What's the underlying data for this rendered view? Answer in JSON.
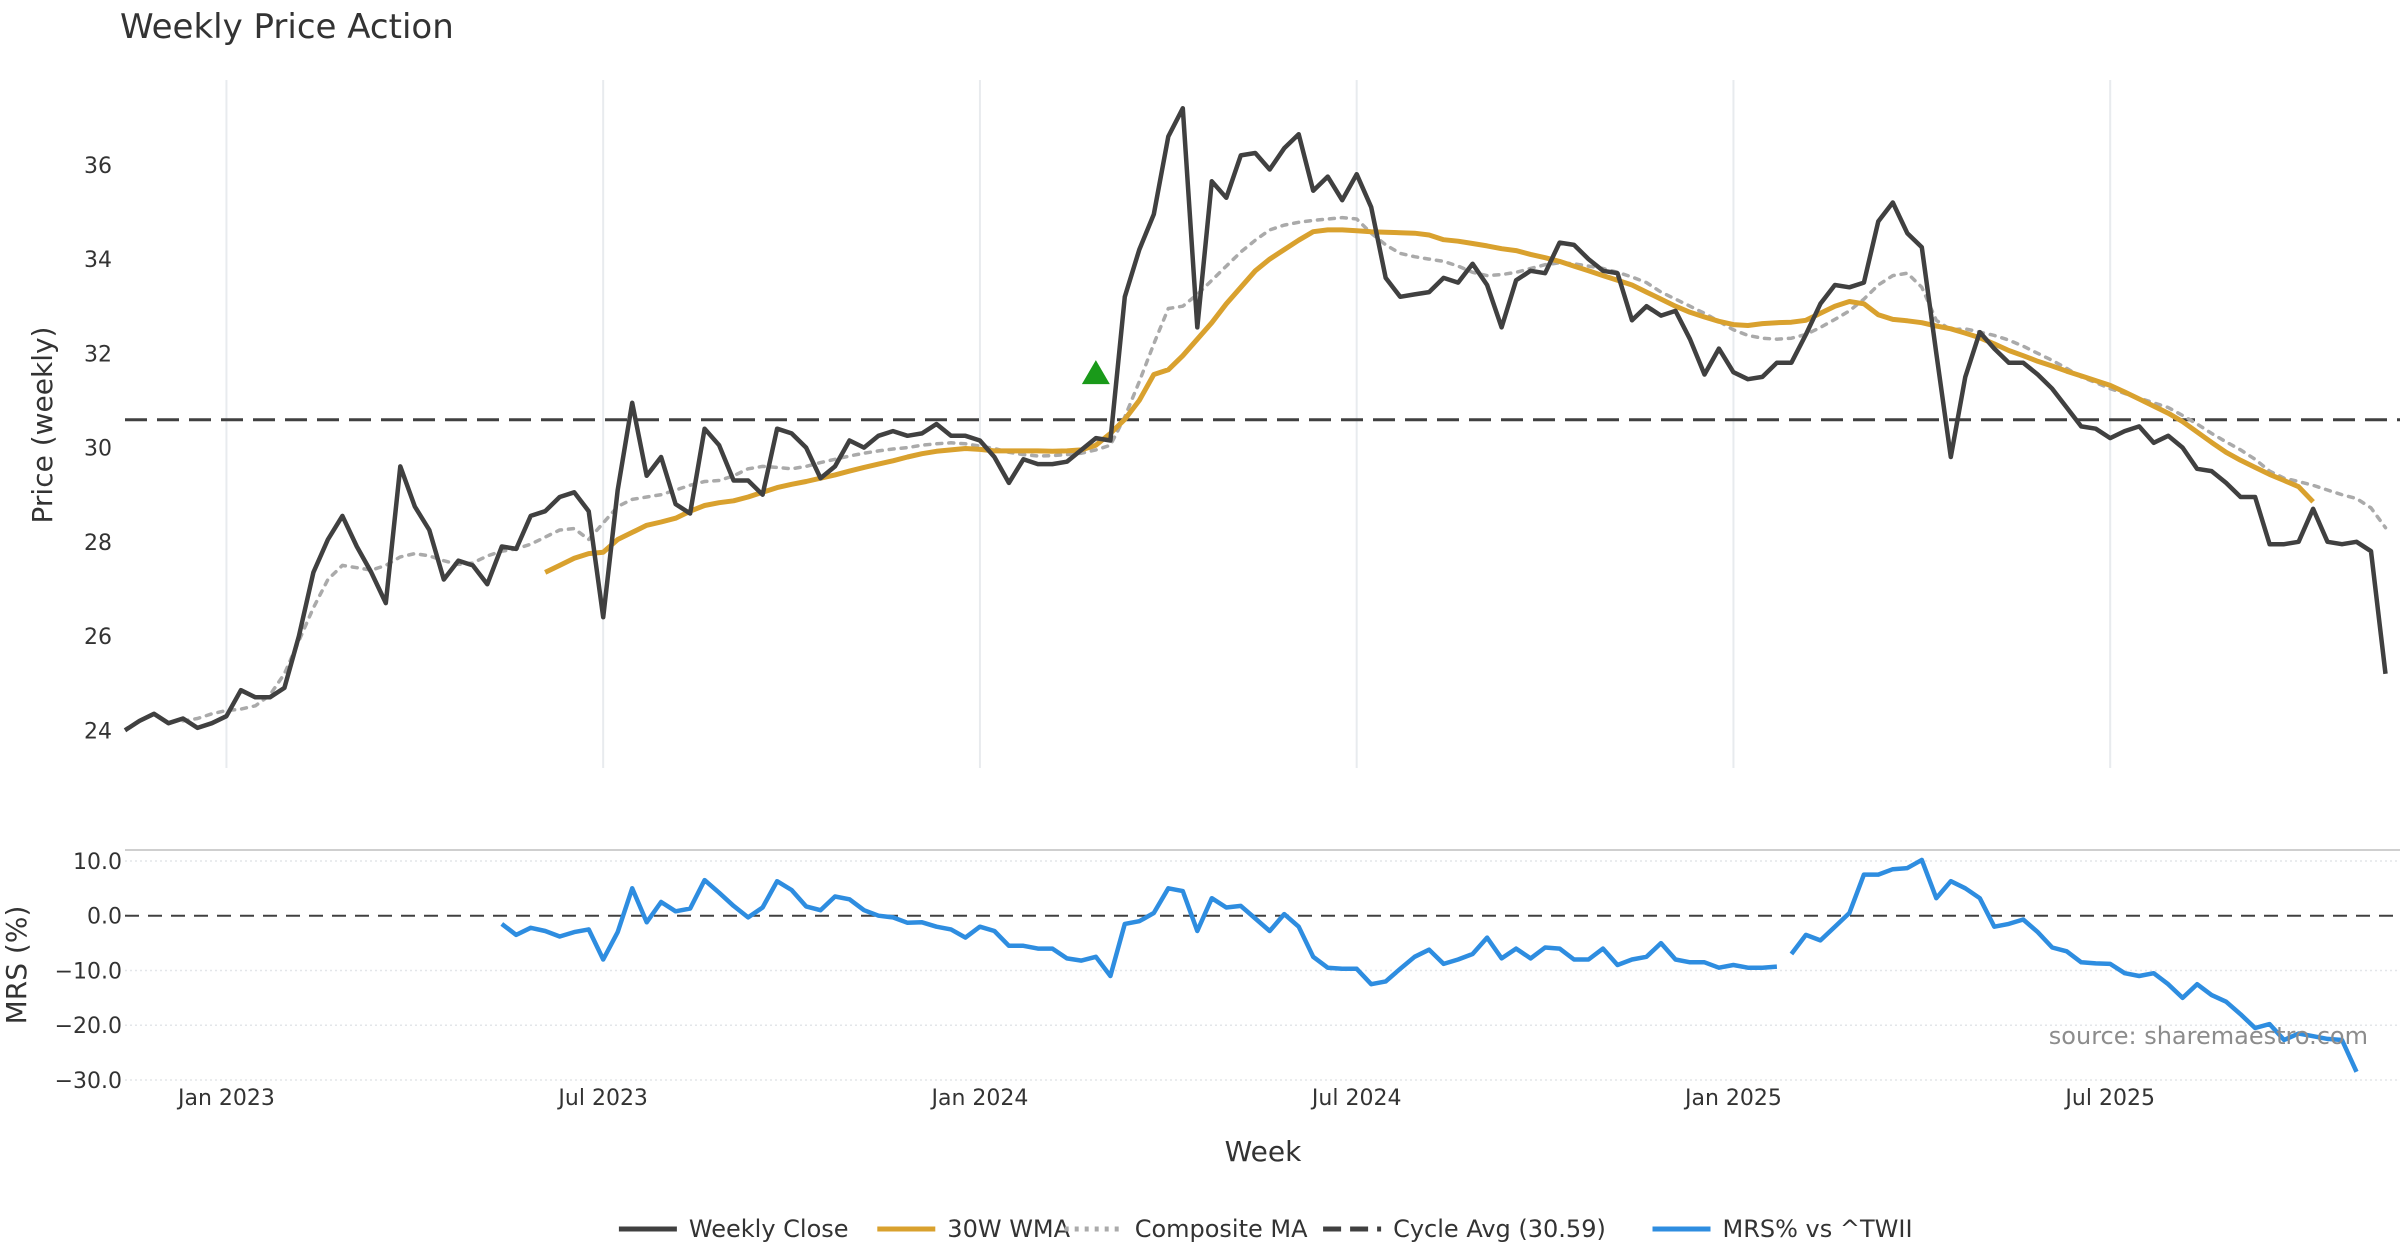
{
  "chart_data": {
    "type": "line",
    "title": "Weekly Price Action",
    "xlabel": "Week",
    "date_ticks": [
      {
        "label": "Jan 2023",
        "week": 3
      },
      {
        "label": "Jul 2023",
        "week": 29
      },
      {
        "label": "Jan 2024",
        "week": 55
      },
      {
        "label": "Jul 2024",
        "week": 81
      },
      {
        "label": "Jan 2025",
        "week": 107
      },
      {
        "label": "Jul 2025",
        "week": 133
      }
    ],
    "x_range": [
      -4,
      153
    ],
    "price_panel": {
      "ylabel": "Price (weekly)",
      "ylim": [
        23.2,
        37.8
      ],
      "yticks": [
        {
          "v": 24,
          "label": "24"
        },
        {
          "v": 26,
          "label": "26"
        },
        {
          "v": 28,
          "label": "28"
        },
        {
          "v": 30,
          "label": "30"
        },
        {
          "v": 32,
          "label": "32"
        },
        {
          "v": 34,
          "label": "34"
        },
        {
          "v": 36,
          "label": "36"
        }
      ],
      "cycle_avg": 30.59,
      "signal": {
        "name": "buy-signal",
        "week": 63,
        "value": 31.6,
        "color": "#1a9a1a"
      },
      "series": [
        {
          "name": "Weekly Close",
          "color": "#404040",
          "style": "solid",
          "start_week": -4,
          "values": [
            24.0,
            24.2,
            24.35,
            24.15,
            24.25,
            24.05,
            24.15,
            24.3,
            24.85,
            24.7,
            24.7,
            24.9,
            26.0,
            27.35,
            28.05,
            28.55,
            27.9,
            27.35,
            26.7,
            29.6,
            28.75,
            28.25,
            27.2,
            27.6,
            27.5,
            27.1,
            27.9,
            27.85,
            28.55,
            28.65,
            28.95,
            29.05,
            28.65,
            26.4,
            29.1,
            30.95,
            29.4,
            29.8,
            28.8,
            28.6,
            30.4,
            30.05,
            29.3,
            29.3,
            29.0,
            30.4,
            30.3,
            30.0,
            29.35,
            29.6,
            30.15,
            30.0,
            30.25,
            30.35,
            30.25,
            30.3,
            30.5,
            30.25,
            30.25,
            30.15,
            29.8,
            29.25,
            29.75,
            29.65,
            29.65,
            29.7,
            29.95,
            30.2,
            30.15,
            33.2,
            34.2,
            34.95,
            36.6,
            37.2,
            32.55,
            35.65,
            35.3,
            36.2,
            36.25,
            35.9,
            36.35,
            36.65,
            35.45,
            35.75,
            35.25,
            35.8,
            35.1,
            33.6,
            33.2,
            33.25,
            33.3,
            33.6,
            33.5,
            33.9,
            33.45,
            32.55,
            33.55,
            33.75,
            33.7,
            34.35,
            34.3,
            34.0,
            33.75,
            33.7,
            32.7,
            33.0,
            32.8,
            32.9,
            32.3,
            31.55,
            32.1,
            31.6,
            31.45,
            31.5,
            31.8,
            31.8,
            32.4,
            33.05,
            33.45,
            33.4,
            33.5,
            34.8,
            35.2,
            34.55,
            34.25,
            32.0,
            29.8,
            31.5,
            32.45,
            32.1,
            31.8,
            31.8,
            31.55,
            31.25,
            30.85,
            30.45,
            30.4,
            30.2,
            30.35,
            30.45,
            30.1,
            30.25,
            30.0,
            29.55,
            29.5,
            29.25,
            28.95,
            28.95,
            27.95,
            27.95,
            28.0,
            28.7,
            28.0,
            27.95,
            28.0,
            27.8,
            25.2
          ]
        },
        {
          "name": "30W WMA",
          "color": "#d9a12e",
          "style": "solid",
          "start_week": 25,
          "values": [
            27.35,
            27.5,
            27.65,
            27.75,
            27.78,
            28.05,
            28.2,
            28.35,
            28.42,
            28.5,
            28.65,
            28.77,
            28.83,
            28.87,
            28.95,
            29.05,
            29.15,
            29.22,
            29.28,
            29.35,
            29.42,
            29.5,
            29.58,
            29.65,
            29.72,
            29.8,
            29.87,
            29.92,
            29.95,
            29.98,
            29.96,
            29.93,
            29.93,
            29.93,
            29.93,
            29.92,
            29.93,
            29.95,
            30.05,
            30.3,
            30.6,
            31.0,
            31.55,
            31.65,
            31.95,
            32.3,
            32.65,
            33.05,
            33.4,
            33.75,
            34.0,
            34.2,
            34.4,
            34.58,
            34.62,
            34.62,
            34.6,
            34.58,
            34.57,
            34.56,
            34.55,
            34.51,
            34.41,
            34.38,
            34.33,
            34.28,
            34.22,
            34.18,
            34.1,
            34.03,
            33.95,
            33.85,
            33.75,
            33.65,
            33.55,
            33.45,
            33.3,
            33.15,
            33.0,
            32.87,
            32.77,
            32.68,
            32.61,
            32.59,
            32.63,
            32.65,
            32.66,
            32.7,
            32.85,
            33.0,
            33.1,
            33.05,
            32.82,
            32.72,
            32.69,
            32.65,
            32.58,
            32.52,
            32.43,
            32.33,
            32.2,
            32.06,
            31.95,
            31.83,
            31.73,
            31.62,
            31.52,
            31.42,
            31.32,
            31.18,
            31.03,
            30.88,
            30.73,
            30.55,
            30.33,
            30.11,
            29.9,
            29.73,
            29.58,
            29.43,
            29.3,
            29.17,
            28.85
          ]
        },
        {
          "name": "Composite MA",
          "color": "#aaaaaa",
          "style": "dotted",
          "start_week": 0,
          "values": [
            24.2,
            24.25,
            24.35,
            24.42,
            24.45,
            24.52,
            24.75,
            25.2,
            25.9,
            26.6,
            27.2,
            27.5,
            27.45,
            27.4,
            27.5,
            27.68,
            27.75,
            27.7,
            27.6,
            27.52,
            27.55,
            27.7,
            27.8,
            27.85,
            27.95,
            28.1,
            28.25,
            28.28,
            28.05,
            28.4,
            28.75,
            28.9,
            28.95,
            29.0,
            29.1,
            29.2,
            29.28,
            29.3,
            29.4,
            29.55,
            29.6,
            29.58,
            29.55,
            29.6,
            29.68,
            29.75,
            29.82,
            29.88,
            29.93,
            29.97,
            30.0,
            30.05,
            30.08,
            30.1,
            30.08,
            30.03,
            29.98,
            29.9,
            29.85,
            29.82,
            29.83,
            29.85,
            29.88,
            29.95,
            30.05,
            30.65,
            31.4,
            32.2,
            32.95,
            33.0,
            33.25,
            33.55,
            33.85,
            34.15,
            34.4,
            34.62,
            34.72,
            34.78,
            34.82,
            34.85,
            34.88,
            34.85,
            34.55,
            34.3,
            34.12,
            34.05,
            34.0,
            33.95,
            33.85,
            33.72,
            33.65,
            33.67,
            33.72,
            33.8,
            33.88,
            33.92,
            33.9,
            33.85,
            33.8,
            33.72,
            33.62,
            33.5,
            33.3,
            33.15,
            33.0,
            32.85,
            32.68,
            32.5,
            32.38,
            32.32,
            32.3,
            32.32,
            32.4,
            32.55,
            32.72,
            32.9,
            33.15,
            33.45,
            33.65,
            33.7,
            33.4,
            32.7,
            32.5,
            32.52,
            32.45,
            32.38,
            32.28,
            32.15,
            32.0,
            31.85,
            31.68,
            31.5,
            31.38,
            31.25,
            31.15,
            31.05,
            30.95,
            30.85,
            30.68,
            30.5,
            30.3,
            30.12,
            29.95,
            29.75,
            29.5,
            29.35,
            29.28,
            29.2,
            29.1,
            29.0,
            28.92,
            28.72,
            28.3
          ]
        }
      ]
    },
    "mrs_panel": {
      "ylabel": "MRS (%)",
      "ylim": [
        -30,
        12
      ],
      "yticks": [
        {
          "v": 10,
          "label": "10.0"
        },
        {
          "v": 0,
          "label": "0.0"
        },
        {
          "v": -10,
          "label": "−10.0"
        },
        {
          "v": -20,
          "label": "−20.0"
        },
        {
          "v": -30,
          "label": "−30.0"
        }
      ],
      "zero_line": 0,
      "series": [
        {
          "name": "MRS% vs ^TWII",
          "color": "#2e8de0",
          "segments": [
            {
              "start_week": 22,
              "values": [
                -1.5,
                -3.5,
                -2.2,
                -2.8,
                -3.8,
                -3.0,
                -2.5,
                -8.0,
                -3.0,
                5.0,
                -1.2,
                2.5,
                0.8,
                1.3,
                6.5,
                4.2,
                1.8,
                -0.3,
                1.5,
                6.3,
                4.7,
                1.7,
                1.0,
                3.5,
                3.0,
                1.0,
                0.0,
                -0.3,
                -1.3,
                -1.2,
                -2.0,
                -2.5,
                -4.0,
                -2.0,
                -2.8,
                -5.5,
                -5.5,
                -6.0,
                -6.0,
                -7.8,
                -8.2,
                -7.5,
                -11.0,
                -1.5,
                -1.0,
                0.5,
                5.0,
                4.5,
                -2.8,
                3.2,
                1.5,
                1.8,
                -0.5,
                -2.8,
                0.3,
                -2.0,
                -7.5,
                -9.5,
                -9.7,
                -9.7,
                -12.5,
                -12.0,
                -9.7,
                -7.5,
                -6.2,
                -8.8,
                -8.0,
                -7.0,
                -4.0,
                -7.8,
                -6.0,
                -7.8,
                -5.8,
                -6.0,
                -8.0,
                -8.0,
                -6.0,
                -9.0,
                -8.0,
                -7.5,
                -5.0,
                -8.0,
                -8.5,
                -8.5,
                -9.5,
                -9.0,
                -9.5,
                -9.5,
                -9.3
              ]
            },
            {
              "start_week": 111,
              "values": [
                -7.0,
                -3.5,
                -4.5,
                -2.0,
                0.5,
                7.5,
                7.5,
                8.5,
                8.7,
                10.2,
                3.2,
                6.3,
                5.0,
                3.2,
                -2.0,
                -1.5,
                -0.7,
                -3.0,
                -5.8,
                -6.5,
                -8.5,
                -8.7,
                -8.8,
                -10.5,
                -11.0,
                -10.5,
                -12.5,
                -15.0,
                -12.5,
                -14.5,
                -15.7,
                -18.0,
                -20.5,
                -19.8,
                -22.7,
                -21.5,
                -22.0,
                -22.5,
                -22.7,
                -28.5
              ]
            }
          ]
        }
      ]
    },
    "legend": [
      {
        "label": "Weekly Close",
        "color": "#404040",
        "style": "solid"
      },
      {
        "label": "30W WMA",
        "color": "#d9a12e",
        "style": "solid"
      },
      {
        "label": "Composite MA",
        "color": "#aaaaaa",
        "style": "dotted"
      },
      {
        "label": "Cycle Avg (30.59)",
        "color": "#404040",
        "style": "dashed"
      },
      {
        "label": "MRS% vs ^TWII",
        "color": "#2e8de0",
        "style": "solid"
      }
    ],
    "annotation": "source: sharemaestro.com"
  }
}
